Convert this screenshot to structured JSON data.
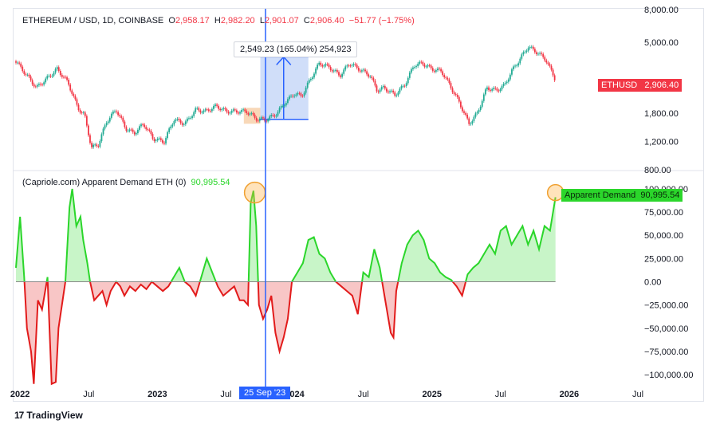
{
  "header": {
    "symbol": "ETHEREUM / USD, 1D, COINBASE",
    "o_label": "O",
    "o_value": "2,958.17",
    "h_label": "H",
    "h_value": "2,982.20",
    "l_label": "L",
    "l_value": "2,901.07",
    "c_label": "C",
    "c_value": "2,906.40",
    "change": "−51.77 (−1.75%)"
  },
  "measure_label": "2,549.23 (165.04%) 254,923",
  "price_tag": {
    "symbol": "ETHUSD",
    "value": "2,906.40"
  },
  "indicator": {
    "title": "(Capriole.com) Apparent Demand ETH (0)",
    "value": "90,995.54",
    "tag_label": "Apparent Demand",
    "tag_value": "90,995.54"
  },
  "date_tag": "25 Sep '23",
  "brand": "TradingView",
  "colors": {
    "up": "#22ab94",
    "down": "#f23645",
    "pos": "#2bd62b",
    "neg": "#e21b1b",
    "blue": "#2962ff"
  },
  "chart_data": [
    {
      "type": "line",
      "name": "price",
      "scale": "log",
      "yticks": [
        "8,000.00",
        "5,000.00",
        "1,800.00",
        "1,200.00",
        "800.00"
      ],
      "ytick_values": [
        8000,
        5000,
        1800,
        1200,
        800
      ],
      "x_labels": [
        "2022",
        "Jul",
        "2023",
        "Jul",
        "2024",
        "Jul",
        "2025",
        "Jul",
        "2026",
        "Jul"
      ],
      "x_label_values": [
        2022.0,
        2022.5,
        2023.0,
        2023.5,
        2024.0,
        2024.5,
        2025.0,
        2025.5,
        2026.0,
        2026.5
      ],
      "xlim": [
        2021.97,
        2026.5
      ],
      "ylim": [
        800,
        8000
      ],
      "x": [
        2021.97,
        2022.05,
        2022.12,
        2022.2,
        2022.27,
        2022.35,
        2022.42,
        2022.47,
        2022.52,
        2022.57,
        2022.63,
        2022.7,
        2022.77,
        2022.83,
        2022.9,
        2022.97,
        2023.05,
        2023.12,
        2023.2,
        2023.28,
        2023.35,
        2023.43,
        2023.5,
        2023.58,
        2023.65,
        2023.73,
        2023.8,
        2023.87,
        2023.93,
        2024.0,
        2024.05,
        2024.12,
        2024.18,
        2024.25,
        2024.33,
        2024.4,
        2024.47,
        2024.55,
        2024.6,
        2024.65,
        2024.73,
        2024.8,
        2024.87,
        2024.93,
        2025.0,
        2025.07,
        2025.13,
        2025.2,
        2025.27,
        2025.33,
        2025.4,
        2025.47,
        2025.53,
        2025.58,
        2025.63,
        2025.7,
        2025.77,
        2025.83,
        2025.9
      ],
      "y": [
        3800,
        3100,
        2600,
        3000,
        3400,
        2800,
        1950,
        1750,
        1100,
        1150,
        1600,
        1900,
        1450,
        1350,
        1550,
        1250,
        1200,
        1650,
        1550,
        1900,
        1850,
        2000,
        1850,
        1850,
        1850,
        1650,
        1650,
        1800,
        2100,
        2400,
        2300,
        3000,
        3700,
        3500,
        3100,
        3700,
        3400,
        3100,
        2500,
        2600,
        2350,
        2700,
        3600,
        3700,
        3400,
        3300,
        2700,
        2100,
        1550,
        1800,
        2600,
        2500,
        2700,
        3300,
        3800,
        4700,
        4300,
        3900,
        2906.4
      ]
    },
    {
      "type": "area",
      "name": "Apparent Demand",
      "yticks": [
        "100,000.00",
        "75,000.00",
        "50,000.00",
        "25,000.00",
        "0.00",
        "−25,000.00",
        "−50,000.00",
        "−75,000.00",
        "−100,000.00"
      ],
      "ytick_values": [
        100000,
        75000,
        50000,
        25000,
        0,
        -25000,
        -50000,
        -75000,
        -100000
      ],
      "ylim": [
        -112000,
        118000
      ],
      "x": [
        2021.97,
        2022.0,
        2022.03,
        2022.05,
        2022.08,
        2022.1,
        2022.13,
        2022.16,
        2022.2,
        2022.23,
        2022.26,
        2022.28,
        2022.31,
        2022.33,
        2022.36,
        2022.38,
        2022.41,
        2022.44,
        2022.46,
        2022.49,
        2022.51,
        2022.54,
        2022.57,
        2022.6,
        2022.63,
        2022.66,
        2022.7,
        2022.73,
        2022.76,
        2022.8,
        2022.84,
        2022.88,
        2022.92,
        2022.96,
        2023.0,
        2023.04,
        2023.08,
        2023.12,
        2023.16,
        2023.2,
        2023.24,
        2023.28,
        2023.32,
        2023.36,
        2023.4,
        2023.44,
        2023.48,
        2023.52,
        2023.56,
        2023.6,
        2023.63,
        2023.66,
        2023.68,
        2023.7,
        2023.72,
        2023.74,
        2023.77,
        2023.8,
        2023.83,
        2023.86,
        2023.89,
        2023.92,
        2023.95,
        2023.98,
        2024.02,
        2024.06,
        2024.1,
        2024.14,
        2024.18,
        2024.22,
        2024.26,
        2024.3,
        2024.34,
        2024.38,
        2024.42,
        2024.46,
        2024.5,
        2024.54,
        2024.58,
        2024.62,
        2024.66,
        2024.7,
        2024.72,
        2024.74,
        2024.78,
        2024.82,
        2024.86,
        2024.9,
        2024.94,
        2024.98,
        2025.02,
        2025.06,
        2025.1,
        2025.14,
        2025.18,
        2025.2,
        2025.22,
        2025.26,
        2025.3,
        2025.34,
        2025.38,
        2025.42,
        2025.46,
        2025.5,
        2025.54,
        2025.58,
        2025.62,
        2025.66,
        2025.7,
        2025.74,
        2025.78,
        2025.82,
        2025.86,
        2025.9
      ],
      "y": [
        15000,
        70000,
        5000,
        -50000,
        -75000,
        -110000,
        -20000,
        -30000,
        5000,
        -110000,
        -108000,
        -50000,
        -20000,
        0,
        80000,
        100000,
        60000,
        70000,
        45000,
        20000,
        0,
        -20000,
        -15000,
        -10000,
        -25000,
        -10000,
        0,
        -5000,
        -15000,
        -5000,
        -10000,
        -3000,
        -8000,
        0,
        -5000,
        -10000,
        -5000,
        5000,
        15000,
        0,
        -5000,
        -15000,
        5000,
        25000,
        10000,
        -5000,
        -15000,
        -10000,
        -5000,
        -20000,
        -20000,
        -25000,
        85000,
        98000,
        60000,
        -25000,
        -40000,
        -30000,
        -15000,
        -55000,
        -75000,
        -60000,
        -40000,
        0,
        10000,
        20000,
        45000,
        48000,
        30000,
        25000,
        10000,
        0,
        -5000,
        -10000,
        -15000,
        -35000,
        10000,
        5000,
        35000,
        15000,
        -20000,
        -55000,
        -60000,
        -10000,
        20000,
        40000,
        50000,
        55000,
        45000,
        25000,
        20000,
        10000,
        5000,
        2000,
        -5000,
        -10000,
        -15000,
        8000,
        15000,
        20000,
        30000,
        40000,
        30000,
        55000,
        60000,
        40000,
        50000,
        60000,
        40000,
        55000,
        35000,
        60000,
        55000,
        90995.54
      ]
    }
  ]
}
